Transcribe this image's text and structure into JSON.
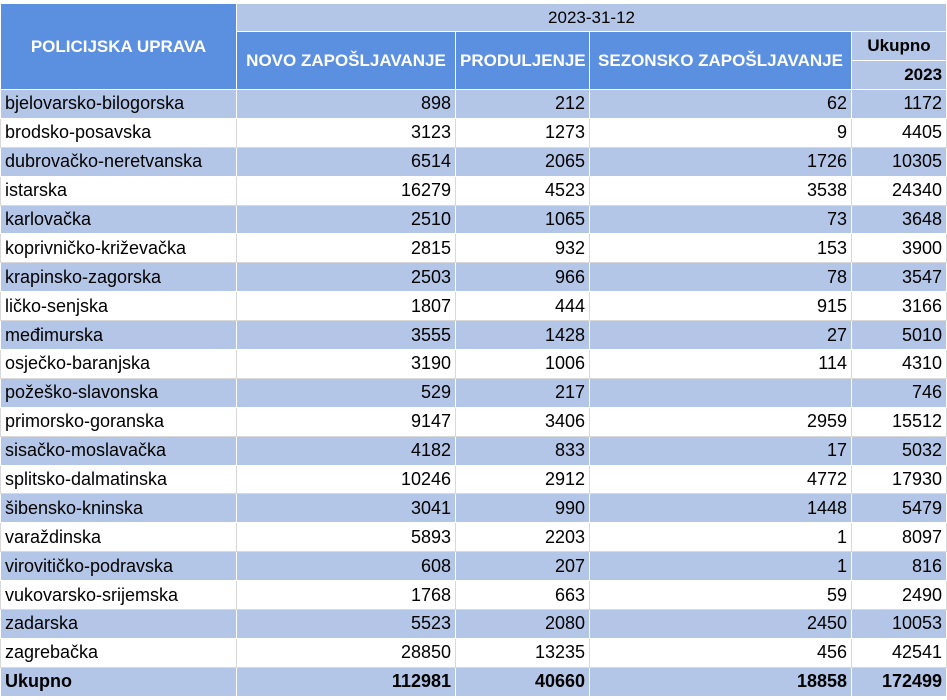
{
  "header": {
    "date": "2023-31-12",
    "station_col": "POLICIJSKA UPRAVA",
    "new_col": "NOVO ZAPOŠLJAVANJE",
    "extend_col": "PRODULJENJE",
    "seasonal_col": "SEZONSKO ZAPOŠLJAVANJE",
    "total_col": "Ukupno",
    "total_year": "2023"
  },
  "rows": [
    {
      "name": "bjelovarsko-bilogorska",
      "novo": "898",
      "produljenje": "212",
      "sezonsko": "62",
      "ukupno": "1172"
    },
    {
      "name": "brodsko-posavska",
      "novo": "3123",
      "produljenje": "1273",
      "sezonsko": "9",
      "ukupno": "4405"
    },
    {
      "name": "dubrovačko-neretvanska",
      "novo": "6514",
      "produljenje": "2065",
      "sezonsko": "1726",
      "ukupno": "10305"
    },
    {
      "name": "istarska",
      "novo": "16279",
      "produljenje": "4523",
      "sezonsko": "3538",
      "ukupno": "24340"
    },
    {
      "name": "karlovačka",
      "novo": "2510",
      "produljenje": "1065",
      "sezonsko": "73",
      "ukupno": "3648"
    },
    {
      "name": "koprivničko-križevačka",
      "novo": "2815",
      "produljenje": "932",
      "sezonsko": "153",
      "ukupno": "3900"
    },
    {
      "name": "krapinsko-zagorska",
      "novo": "2503",
      "produljenje": "966",
      "sezonsko": "78",
      "ukupno": "3547"
    },
    {
      "name": "ličko-senjska",
      "novo": "1807",
      "produljenje": "444",
      "sezonsko": "915",
      "ukupno": "3166"
    },
    {
      "name": "međimurska",
      "novo": "3555",
      "produljenje": "1428",
      "sezonsko": "27",
      "ukupno": "5010"
    },
    {
      "name": "osječko-baranjska",
      "novo": "3190",
      "produljenje": "1006",
      "sezonsko": "114",
      "ukupno": "4310"
    },
    {
      "name": "požeško-slavonska",
      "novo": "529",
      "produljenje": "217",
      "sezonsko": "",
      "ukupno": "746"
    },
    {
      "name": "primorsko-goranska",
      "novo": "9147",
      "produljenje": "3406",
      "sezonsko": "2959",
      "ukupno": "15512"
    },
    {
      "name": "sisačko-moslavačka",
      "novo": "4182",
      "produljenje": "833",
      "sezonsko": "17",
      "ukupno": "5032"
    },
    {
      "name": "splitsko-dalmatinska",
      "novo": "10246",
      "produljenje": "2912",
      "sezonsko": "4772",
      "ukupno": "17930"
    },
    {
      "name": "šibensko-kninska",
      "novo": "3041",
      "produljenje": "990",
      "sezonsko": "1448",
      "ukupno": "5479"
    },
    {
      "name": "varaždinska",
      "novo": "5893",
      "produljenje": "2203",
      "sezonsko": "1",
      "ukupno": "8097"
    },
    {
      "name": "virovitičko-podravska",
      "novo": "608",
      "produljenje": "207",
      "sezonsko": "1",
      "ukupno": "816"
    },
    {
      "name": "vukovarsko-srijemska",
      "novo": "1768",
      "produljenje": "663",
      "sezonsko": "59",
      "ukupno": "2490"
    },
    {
      "name": "zadarska",
      "novo": "5523",
      "produljenje": "2080",
      "sezonsko": "2450",
      "ukupno": "10053"
    },
    {
      "name": "zagrebačka",
      "novo": "28850",
      "produljenje": "13235",
      "sezonsko": "456",
      "ukupno": "42541"
    }
  ],
  "total": {
    "name": "Ukupno",
    "novo": "112981",
    "produljenje": "40660",
    "sezonsko": "18858",
    "ukupno": "172499"
  },
  "colors": {
    "header_blue": "#5b8fe0",
    "band_light": "#b4c6e7",
    "white": "#ffffff"
  }
}
